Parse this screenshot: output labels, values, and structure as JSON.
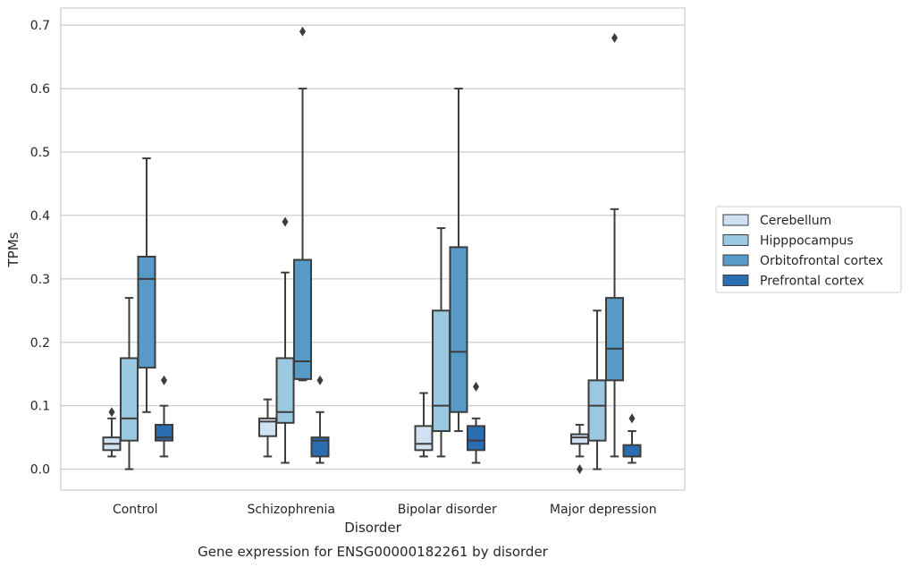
{
  "chart_data": {
    "type": "box",
    "caption": "Gene expression for ENSG00000182261 by disorder",
    "xlabel": "Disorder",
    "ylabel": "TPMs",
    "ylim": [
      -0.033,
      0.727
    ],
    "yticks": [
      0.0,
      0.1,
      0.2,
      0.3,
      0.4,
      0.5,
      0.6,
      0.7
    ],
    "ytick_labels": [
      "0.0",
      "0.1",
      "0.2",
      "0.3",
      "0.4",
      "0.5",
      "0.6",
      "0.7"
    ],
    "grid": "horizontal",
    "legend_position": "right",
    "categories": [
      "Control",
      "Schizophrenia",
      "Bipolar disorder",
      "Major depression"
    ],
    "series": [
      {
        "name": "Cerebellum",
        "color": "#d0e1f2",
        "boxes": [
          {
            "whislo": 0.02,
            "q1": 0.03,
            "med": 0.04,
            "q3": 0.05,
            "whishi": 0.08,
            "fliers": [
              0.09
            ]
          },
          {
            "whislo": 0.02,
            "q1": 0.052,
            "med": 0.075,
            "q3": 0.08,
            "whishi": 0.11,
            "fliers": []
          },
          {
            "whislo": 0.02,
            "q1": 0.03,
            "med": 0.04,
            "q3": 0.068,
            "whishi": 0.12,
            "fliers": []
          },
          {
            "whislo": 0.02,
            "q1": 0.04,
            "med": 0.05,
            "q3": 0.055,
            "whishi": 0.07,
            "fliers": [
              0.0
            ]
          }
        ]
      },
      {
        "name": "Hipppocampus",
        "color": "#9ac8e0",
        "boxes": [
          {
            "whislo": 0.0,
            "q1": 0.045,
            "med": 0.08,
            "q3": 0.175,
            "whishi": 0.27,
            "fliers": []
          },
          {
            "whislo": 0.01,
            "q1": 0.073,
            "med": 0.09,
            "q3": 0.175,
            "whishi": 0.31,
            "fliers": [
              0.39
            ]
          },
          {
            "whislo": 0.02,
            "q1": 0.06,
            "med": 0.1,
            "q3": 0.25,
            "whishi": 0.38,
            "fliers": []
          },
          {
            "whislo": 0.0,
            "q1": 0.045,
            "med": 0.1,
            "q3": 0.14,
            "whishi": 0.25,
            "fliers": []
          }
        ]
      },
      {
        "name": "Orbitofrontal cortex",
        "color": "#5799c7",
        "boxes": [
          {
            "whislo": 0.09,
            "q1": 0.16,
            "med": 0.3,
            "q3": 0.335,
            "whishi": 0.49,
            "fliers": []
          },
          {
            "whislo": 0.14,
            "q1": 0.142,
            "med": 0.17,
            "q3": 0.33,
            "whishi": 0.6,
            "fliers": [
              0.69
            ]
          },
          {
            "whislo": 0.06,
            "q1": 0.09,
            "med": 0.185,
            "q3": 0.35,
            "whishi": 0.6,
            "fliers": []
          },
          {
            "whislo": 0.02,
            "q1": 0.14,
            "med": 0.19,
            "q3": 0.27,
            "whishi": 0.41,
            "fliers": [
              0.68
            ]
          }
        ]
      },
      {
        "name": "Prefrontal cortex",
        "color": "#2a6db0",
        "boxes": [
          {
            "whislo": 0.02,
            "q1": 0.045,
            "med": 0.05,
            "q3": 0.07,
            "whishi": 0.1,
            "fliers": [
              0.14
            ]
          },
          {
            "whislo": 0.01,
            "q1": 0.02,
            "med": 0.045,
            "q3": 0.05,
            "whishi": 0.09,
            "fliers": [
              0.14
            ]
          },
          {
            "whislo": 0.01,
            "q1": 0.03,
            "med": 0.045,
            "q3": 0.068,
            "whishi": 0.08,
            "fliers": [
              0.13
            ]
          },
          {
            "whislo": 0.01,
            "q1": 0.02,
            "med": 0.02,
            "q3": 0.038,
            "whishi": 0.06,
            "fliers": [
              0.08
            ]
          }
        ]
      }
    ]
  }
}
